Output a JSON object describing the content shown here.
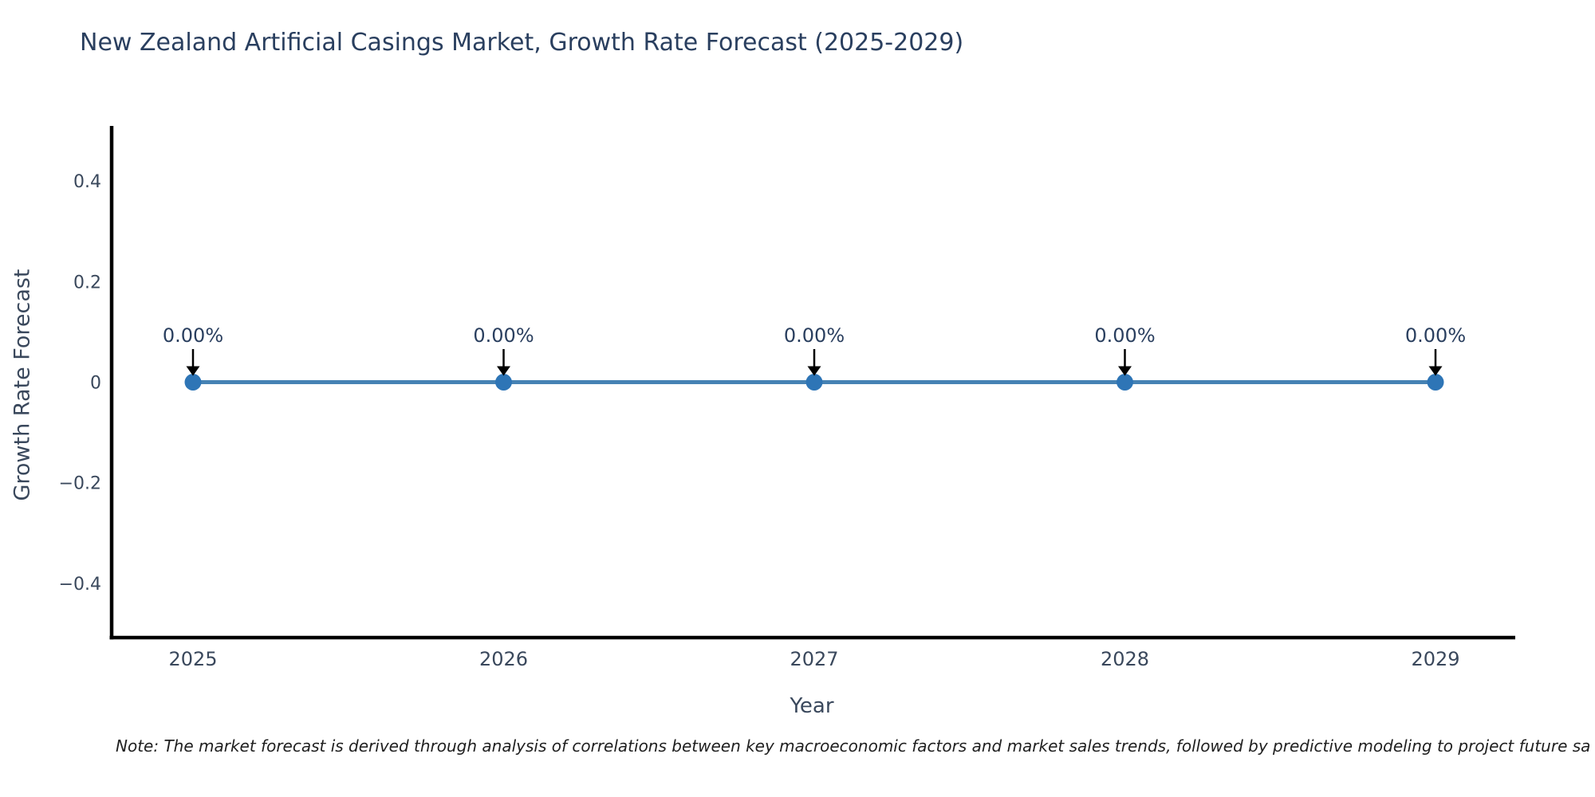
{
  "chart_data": {
    "type": "line",
    "title": "New Zealand Artificial Casings Market, Growth Rate Forecast (2025-2029)",
    "xlabel": "Year",
    "ylabel": "Growth Rate Forecast",
    "categories": [
      "2025",
      "2026",
      "2027",
      "2028",
      "2029"
    ],
    "series": [
      {
        "name": "Growth Rate Forecast",
        "values": [
          0,
          0,
          0,
          0,
          0
        ]
      }
    ],
    "point_labels": [
      "0.00%",
      "0.00%",
      "0.00%",
      "0.00%",
      "0.00%"
    ],
    "yticks": [
      {
        "v": 0.4,
        "label": "0.4"
      },
      {
        "v": 0.2,
        "label": "0.2"
      },
      {
        "v": 0,
        "label": "0"
      },
      {
        "v": -0.2,
        "label": "−0.2"
      },
      {
        "v": -0.4,
        "label": "−0.4"
      }
    ],
    "ylim": [
      -0.51,
      0.51
    ],
    "grid": false,
    "legend_position": "none",
    "annotation_style": "down-arrow-to-point",
    "note": "Note: The market forecast is derived through analysis of correlations between key macroeconomic factors and market sales trends, followed by predictive modeling to project future sa",
    "colors": {
      "line": "#4682b4",
      "marker": "#2e75b6",
      "arrow": "#000000",
      "axis": "#000000",
      "title": "#2a3f5f",
      "tick": "#3a485c",
      "annotation": "#2a3f5f",
      "note": "#1f1f1f",
      "background": "#ffffff"
    }
  }
}
